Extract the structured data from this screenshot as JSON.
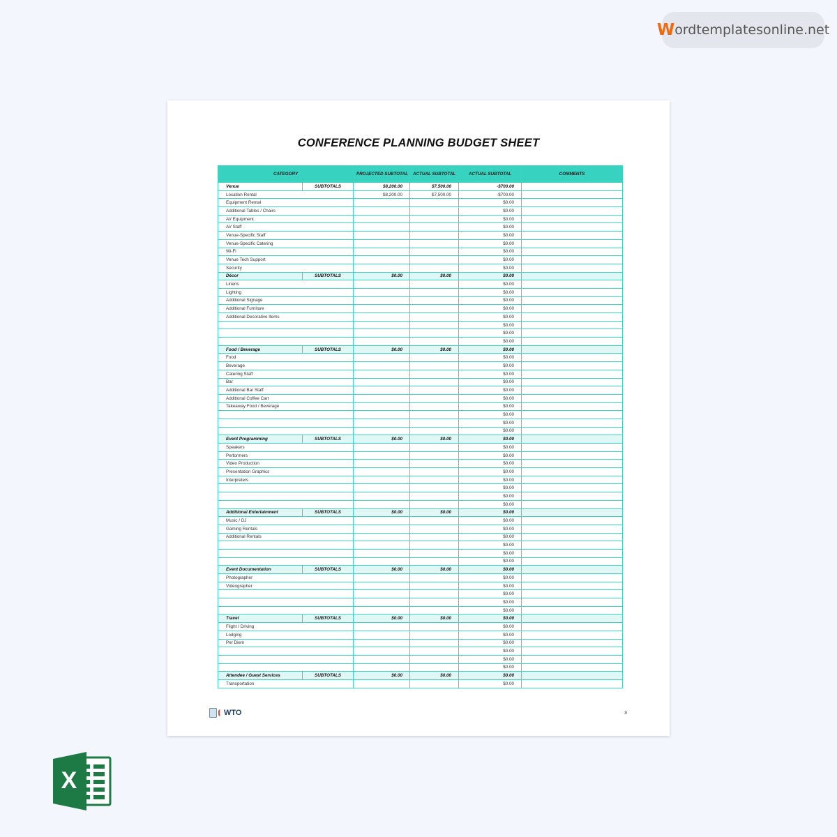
{
  "watermark": {
    "initial": "W",
    "rest": "ordtemplatesonline.net"
  },
  "document": {
    "title": "CONFERENCE PLANNING BUDGET SHEET",
    "columns": [
      "CATEGORY",
      "PROJECTED SUBTOTAL",
      "ACTUAL SUBTOTAL",
      "ACTUAL SUBTOTAL",
      "COMMENTS"
    ],
    "subtotals_label": "SUBTOTALS",
    "sections": [
      {
        "name": "Venue",
        "projected": "$8,200.00",
        "actual": "$7,500.00",
        "diff": "-$700.00",
        "items": [
          {
            "label": "Location Rental",
            "projected": "$8,200.00",
            "actual": "$7,500.00",
            "diff": "-$700.00"
          },
          {
            "label": "Equipment Rental",
            "diff": "$0.00"
          },
          {
            "label": "Additional Tables / Chairs",
            "diff": "$0.00"
          },
          {
            "label": "AV Equipment",
            "diff": "$0.00"
          },
          {
            "label": "AV Staff",
            "diff": "$0.00"
          },
          {
            "label": "Venue-Specific Staff",
            "diff": "$0.00"
          },
          {
            "label": "Venue-Specific Catering",
            "diff": "$0.00"
          },
          {
            "label": "Wi-Fi",
            "diff": "$0.00"
          },
          {
            "label": "Venue Tech Support",
            "diff": "$0.00"
          },
          {
            "label": "Security",
            "diff": "$0.00"
          }
        ]
      },
      {
        "name": "Décor",
        "projected": "$0.00",
        "actual": "$0.00",
        "diff": "$0.00",
        "items": [
          {
            "label": "Linens",
            "diff": "$0.00"
          },
          {
            "label": "Lighting",
            "diff": "$0.00"
          },
          {
            "label": "Additional Signage",
            "diff": "$0.00"
          },
          {
            "label": "Additional Furniture",
            "diff": "$0.00"
          },
          {
            "label": "Additional Decorative Items",
            "diff": "$0.00"
          },
          {
            "label": "",
            "diff": "$0.00"
          },
          {
            "label": "",
            "diff": "$0.00"
          },
          {
            "label": "",
            "diff": "$0.00"
          }
        ]
      },
      {
        "name": "Food / Beverage",
        "projected": "$0.00",
        "actual": "$0.00",
        "diff": "$0.00",
        "items": [
          {
            "label": "Food",
            "diff": "$0.00"
          },
          {
            "label": "Beverage",
            "diff": "$0.00"
          },
          {
            "label": "Catering Staff",
            "diff": "$0.00"
          },
          {
            "label": "Bar",
            "diff": "$0.00"
          },
          {
            "label": "Additional Bar Staff",
            "diff": "$0.00"
          },
          {
            "label": "Additional Coffee Cart",
            "diff": "$0.00"
          },
          {
            "label": "Takeaway Food / Beverage",
            "diff": "$0.00"
          },
          {
            "label": "",
            "diff": "$0.00"
          },
          {
            "label": "",
            "diff": "$0.00"
          },
          {
            "label": "",
            "diff": "$0.00"
          }
        ]
      },
      {
        "name": "Event Programming",
        "projected": "$0.00",
        "actual": "$0.00",
        "diff": "$0.00",
        "items": [
          {
            "label": "Speakers",
            "diff": "$0.00"
          },
          {
            "label": "Performers",
            "diff": "$0.00"
          },
          {
            "label": "Video Production",
            "diff": "$0.00"
          },
          {
            "label": "Presentation Graphics",
            "diff": "$0.00"
          },
          {
            "label": "Interpreters",
            "diff": "$0.00"
          },
          {
            "label": "",
            "diff": "$0.00"
          },
          {
            "label": "",
            "diff": "$0.00"
          },
          {
            "label": "",
            "diff": "$0.00"
          }
        ]
      },
      {
        "name": "Additional Entertainment",
        "projected": "$0.00",
        "actual": "$0.00",
        "diff": "$0.00",
        "items": [
          {
            "label": "Music / DJ",
            "diff": "$0.00"
          },
          {
            "label": "Gaming Rentals",
            "diff": "$0.00"
          },
          {
            "label": "Additional Rentals",
            "diff": "$0.00"
          },
          {
            "label": "",
            "diff": "$0.00"
          },
          {
            "label": "",
            "diff": "$0.00"
          },
          {
            "label": "",
            "diff": "$0.00"
          }
        ]
      },
      {
        "name": "Event Documentation",
        "projected": "$0.00",
        "actual": "$0.00",
        "diff": "$0.00",
        "items": [
          {
            "label": "Photographer",
            "diff": "$0.00"
          },
          {
            "label": "Videographer",
            "diff": "$0.00"
          },
          {
            "label": "",
            "diff": "$0.00"
          },
          {
            "label": "",
            "diff": "$0.00"
          },
          {
            "label": "",
            "diff": "$0.00"
          }
        ]
      },
      {
        "name": "Travel",
        "projected": "$0.00",
        "actual": "$0.00",
        "diff": "$0.00",
        "items": [
          {
            "label": "Flight / Driving",
            "diff": "$0.00"
          },
          {
            "label": "Lodging",
            "diff": "$0.00"
          },
          {
            "label": "Per Diem",
            "diff": "$0.00"
          },
          {
            "label": "",
            "diff": "$0.00"
          },
          {
            "label": "",
            "diff": "$0.00"
          },
          {
            "label": "",
            "diff": "$0.00"
          }
        ]
      },
      {
        "name": "Attendee / Guest Services",
        "projected": "$0.00",
        "actual": "$0.00",
        "diff": "$0.00",
        "items": [
          {
            "label": "Transportation",
            "diff": "$0.00"
          }
        ]
      }
    ],
    "footer": {
      "logo_text": "WTO",
      "page_number": "3"
    }
  },
  "colors": {
    "accent": "#38d2c1",
    "subtotal_row": "#e0f8f5",
    "brand": "#f26a10"
  },
  "icons": {
    "excel": "excel-logo-icon"
  }
}
